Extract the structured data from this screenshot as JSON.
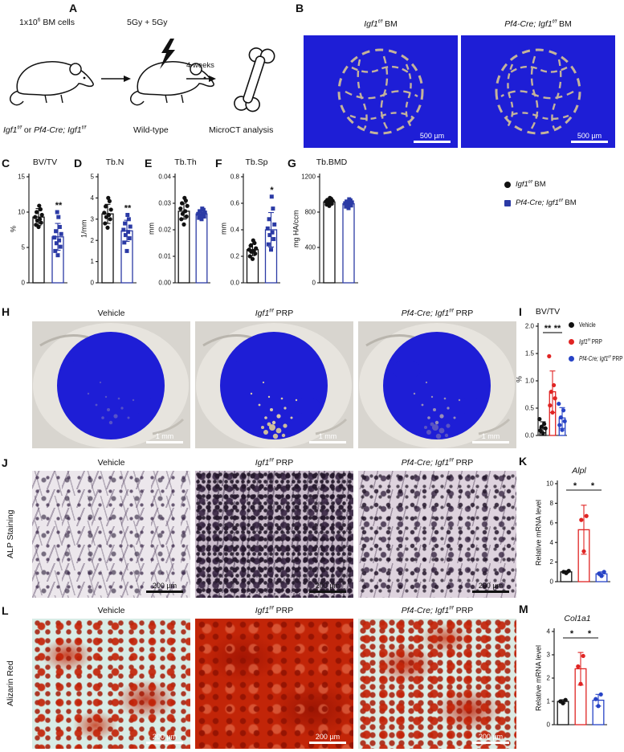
{
  "colors": {
    "black_group": "#111111",
    "blue_bm_group": "#2b3aa5",
    "red_prp_group": "#e02423",
    "blue_prp_group": "#2743c6",
    "microct_blue": "#1e1ed6",
    "trabecular_tan": "#cdbb97"
  },
  "panelA": {
    "label": "A",
    "bm_cells": [
      {
        "t": "1x10"
      },
      {
        "t": "6",
        "sup": true
      },
      {
        "t": " BM cells"
      }
    ],
    "irradiation": "5Gy + 5Gy",
    "duration": "4 weeks",
    "donor": [
      {
        "t": "Igf1",
        "i": true
      },
      {
        "t": "f/f",
        "i": true,
        "sup": true
      },
      {
        "t": " or "
      },
      {
        "t": "Pf4-Cre; Igf1",
        "i": true
      },
      {
        "t": "f/f",
        "i": true,
        "sup": true
      }
    ],
    "recipient": "Wild-type",
    "analysis": "MicroCT analysis"
  },
  "panelB": {
    "label": "B",
    "images": [
      {
        "title": [
          {
            "t": "Igf1",
            "i": true
          },
          {
            "t": "f/f",
            "i": true,
            "sup": true
          },
          {
            "t": " BM"
          }
        ],
        "scale": "500 µm"
      },
      {
        "title": [
          {
            "t": "Pf4-Cre; Igf1",
            "i": true
          },
          {
            "t": "f/f",
            "i": true,
            "sup": true
          },
          {
            "t": " BM"
          }
        ],
        "scale": "500 µm"
      }
    ]
  },
  "bm_legend": {
    "items": [
      {
        "label": [
          {
            "t": "Igf1",
            "i": true
          },
          {
            "t": "f/f",
            "i": true,
            "sup": true
          },
          {
            "t": " BM"
          }
        ],
        "marker": "circle",
        "color": "#111111"
      },
      {
        "label": [
          {
            "t": "Pf4-Cre; Igf1",
            "i": true
          },
          {
            "t": "f/f",
            "i": true,
            "sup": true
          },
          {
            "t": " BM"
          }
        ],
        "marker": "square",
        "color": "#2b3aa5"
      }
    ]
  },
  "prp_columns": [
    [
      {
        "t": "Vehicle"
      }
    ],
    [
      {
        "t": "Igf1",
        "i": true
      },
      {
        "t": "f/f",
        "i": true,
        "sup": true
      },
      {
        "t": " PRP"
      }
    ],
    [
      {
        "t": "Pf4-Cre; Igf1",
        "i": true
      },
      {
        "t": "f/f",
        "i": true,
        "sup": true
      },
      {
        "t": " PRP"
      }
    ]
  ],
  "panelH": {
    "label": "H",
    "scale": "1 mm"
  },
  "panelI": {
    "label": "I",
    "legend": [
      {
        "label": [
          {
            "t": "Vehicle"
          }
        ],
        "color": "#111111"
      },
      {
        "label": [
          {
            "t": "Igf1",
            "i": true
          },
          {
            "t": "f/f",
            "i": true,
            "sup": true
          },
          {
            "t": " PRP"
          }
        ],
        "color": "#e02423"
      },
      {
        "label": [
          {
            "t": "Pf4-Cre; Igf1",
            "i": true
          },
          {
            "t": "f/f",
            "i": true,
            "sup": true
          },
          {
            "t": " PRP"
          }
        ],
        "color": "#2743c6"
      }
    ]
  },
  "panelJ": {
    "label": "J",
    "row_label": "ALP Staining",
    "scale": "200 µm"
  },
  "panelL": {
    "label": "L",
    "row_label": "Alizarin Red",
    "scale": "200 µm"
  },
  "chart_data": [
    {
      "id": "C",
      "panel_label": "C",
      "type": "bar-scatter",
      "title": "BV/TV",
      "title_italic": false,
      "ylabel": "%",
      "ylim": [
        0,
        15
      ],
      "yticks": [
        "0",
        "5",
        "10",
        "15"
      ],
      "groups": [
        {
          "name": "Igf1 f/f BM",
          "color": "#111111",
          "marker": "circle",
          "mean": 9.3,
          "sd": 1.2,
          "points": [
            7.9,
            8.2,
            8.5,
            8.8,
            9.0,
            9.3,
            9.6,
            10.0,
            10.4,
            10.9
          ]
        },
        {
          "name": "Pf4-Cre; Igf1 f/f BM",
          "color": "#2b3aa5",
          "marker": "square",
          "mean": 6.5,
          "sd": 1.9,
          "sig": "**",
          "points": [
            3.9,
            4.5,
            5.1,
            5.6,
            6.0,
            6.4,
            6.9,
            7.3,
            7.9,
            9.3,
            10.0
          ]
        }
      ]
    },
    {
      "id": "D",
      "panel_label": "D",
      "type": "bar-scatter",
      "title": "Tb.N",
      "title_italic": false,
      "ylabel": "1/mm",
      "ylim": [
        0,
        5
      ],
      "yticks": [
        "0",
        "1",
        "2",
        "3",
        "4",
        "5"
      ],
      "groups": [
        {
          "name": "Igf1 f/f BM",
          "color": "#111111",
          "marker": "circle",
          "mean": 3.25,
          "sd": 0.45,
          "points": [
            2.6,
            2.8,
            3.0,
            3.1,
            3.2,
            3.3,
            3.45,
            3.6,
            3.85,
            4.0
          ]
        },
        {
          "name": "Pf4-Cre; Igf1 f/f BM",
          "color": "#2b3aa5",
          "marker": "square",
          "mean": 2.45,
          "sd": 0.5,
          "sig": "**",
          "points": [
            1.5,
            1.9,
            2.1,
            2.25,
            2.4,
            2.5,
            2.65,
            2.8,
            3.0,
            3.2
          ]
        }
      ]
    },
    {
      "id": "E",
      "panel_label": "E",
      "type": "bar-scatter",
      "title": "Tb.Th",
      "title_italic": false,
      "ylabel": "mm",
      "ylim": [
        0,
        0.04
      ],
      "yticks": [
        "0.00",
        "0.01",
        "0.02",
        "0.03",
        "0.04"
      ],
      "groups": [
        {
          "name": "Igf1 f/f BM",
          "color": "#111111",
          "marker": "circle",
          "mean": 0.027,
          "sd": 0.003,
          "points": [
            0.022,
            0.024,
            0.025,
            0.026,
            0.027,
            0.028,
            0.029,
            0.03,
            0.031,
            0.032
          ]
        },
        {
          "name": "Pf4-Cre; Igf1 f/f BM",
          "color": "#2b3aa5",
          "marker": "square",
          "mean": 0.026,
          "sd": 0.0013,
          "points": [
            0.024,
            0.0245,
            0.025,
            0.0255,
            0.026,
            0.026,
            0.0265,
            0.027,
            0.0275,
            0.028
          ]
        }
      ]
    },
    {
      "id": "F",
      "panel_label": "F",
      "type": "bar-scatter",
      "title": "Tb.Sp",
      "title_italic": false,
      "ylabel": "mm",
      "ylim": [
        0,
        0.8
      ],
      "yticks": [
        "0.0",
        "0.2",
        "0.4",
        "0.6",
        "0.8"
      ],
      "groups": [
        {
          "name": "Igf1 f/f BM",
          "color": "#111111",
          "marker": "circle",
          "mean": 0.25,
          "sd": 0.045,
          "points": [
            0.18,
            0.2,
            0.22,
            0.235,
            0.24,
            0.25,
            0.26,
            0.28,
            0.3,
            0.32
          ]
        },
        {
          "name": "Pf4-Cre; Igf1 f/f BM",
          "color": "#2b3aa5",
          "marker": "square",
          "mean": 0.4,
          "sd": 0.13,
          "sig": "*",
          "points": [
            0.25,
            0.29,
            0.33,
            0.36,
            0.38,
            0.41,
            0.44,
            0.48,
            0.56,
            0.65
          ]
        }
      ]
    },
    {
      "id": "G",
      "panel_label": "G",
      "type": "bar-scatter",
      "title": "Tb.BMD",
      "title_italic": false,
      "ylabel": "mg HA/ccm",
      "ylim": [
        0,
        1200
      ],
      "yticks": [
        "0",
        "400",
        "800",
        "1200"
      ],
      "groups": [
        {
          "name": "Igf1 f/f BM",
          "color": "#111111",
          "marker": "circle",
          "mean": 915,
          "sd": 30,
          "points": [
            870,
            885,
            895,
            905,
            912,
            920,
            928,
            938,
            950,
            960
          ]
        },
        {
          "name": "Pf4-Cre; Igf1 f/f BM",
          "color": "#2b3aa5",
          "marker": "square",
          "mean": 895,
          "sd": 30,
          "points": [
            845,
            862,
            875,
            885,
            893,
            900,
            910,
            920,
            932,
            945
          ]
        }
      ]
    },
    {
      "id": "I",
      "panel_label": "I",
      "type": "bar-scatter",
      "title": "BV/TV",
      "title_italic": false,
      "ylabel": "%",
      "ylim": [
        0,
        2
      ],
      "yticks": [
        "0.0",
        "0.5",
        "1.0",
        "1.5",
        "2.0"
      ],
      "groups": [
        {
          "name": "Vehicle",
          "color": "#111111",
          "marker": "circle",
          "mean": 0.15,
          "sd": 0.1,
          "points": [
            0.04,
            0.09,
            0.13,
            0.16,
            0.21,
            0.3
          ]
        },
        {
          "name": "Igf1 f/f PRP",
          "color": "#e02423",
          "marker": "circle",
          "mean": 0.8,
          "sd": 0.38,
          "points": [
            0.42,
            0.55,
            0.68,
            0.8,
            0.92,
            1.45
          ]
        },
        {
          "name": "Pf4-Cre; Igf1 f/f PRP",
          "color": "#2743c6",
          "marker": "circle",
          "mean": 0.32,
          "sd": 0.19,
          "points": [
            0.1,
            0.19,
            0.26,
            0.33,
            0.46,
            0.58
          ]
        }
      ],
      "comparisons": [
        {
          "a": 0,
          "b": 1,
          "label": "**"
        },
        {
          "a": 1,
          "b": 2,
          "label": "**"
        }
      ]
    },
    {
      "id": "K",
      "panel_label": "K",
      "type": "bar-scatter",
      "title": "Alpl",
      "title_italic": true,
      "ylabel": "Relative mRNA level",
      "ylim": [
        0,
        10
      ],
      "yticks": [
        "0",
        "2",
        "4",
        "6",
        "8",
        "10"
      ],
      "groups": [
        {
          "name": "Vehicle",
          "color": "#111111",
          "marker": "circle",
          "mean": 1.0,
          "sd": 0.12,
          "points": [
            0.88,
            1.0,
            1.1
          ]
        },
        {
          "name": "Igf1 f/f PRP",
          "color": "#e02423",
          "marker": "circle",
          "mean": 5.3,
          "sd": 2.5,
          "points": [
            3.1,
            6.3,
            6.7
          ]
        },
        {
          "name": "Pf4-Cre; Igf1 f/f PRP",
          "color": "#2743c6",
          "marker": "circle",
          "mean": 0.8,
          "sd": 0.2,
          "points": [
            0.58,
            0.82,
            1.0
          ]
        }
      ],
      "comparisons": [
        {
          "a": 0,
          "b": 1,
          "label": "*"
        },
        {
          "a": 1,
          "b": 2,
          "label": "*"
        }
      ]
    },
    {
      "id": "M",
      "panel_label": "M",
      "type": "bar-scatter",
      "title": "Col1a1",
      "title_italic": true,
      "ylabel": "Relative mRNA level",
      "ylim": [
        0,
        4
      ],
      "yticks": [
        "0",
        "1",
        "2",
        "3",
        "4"
      ],
      "groups": [
        {
          "name": "Vehicle",
          "color": "#111111",
          "marker": "circle",
          "mean": 1.0,
          "sd": 0.07,
          "points": [
            0.92,
            1.0,
            1.06
          ]
        },
        {
          "name": "Igf1 f/f PRP",
          "color": "#e02423",
          "marker": "circle",
          "mean": 2.4,
          "sd": 0.7,
          "points": [
            1.75,
            2.5,
            2.95
          ]
        },
        {
          "name": "Pf4-Cre; Igf1 f/f PRP",
          "color": "#2743c6",
          "marker": "circle",
          "mean": 1.05,
          "sd": 0.25,
          "points": [
            0.8,
            1.1,
            1.3
          ]
        }
      ],
      "comparisons": [
        {
          "a": 0,
          "b": 1,
          "label": "*"
        },
        {
          "a": 1,
          "b": 2,
          "label": "*"
        }
      ]
    }
  ]
}
